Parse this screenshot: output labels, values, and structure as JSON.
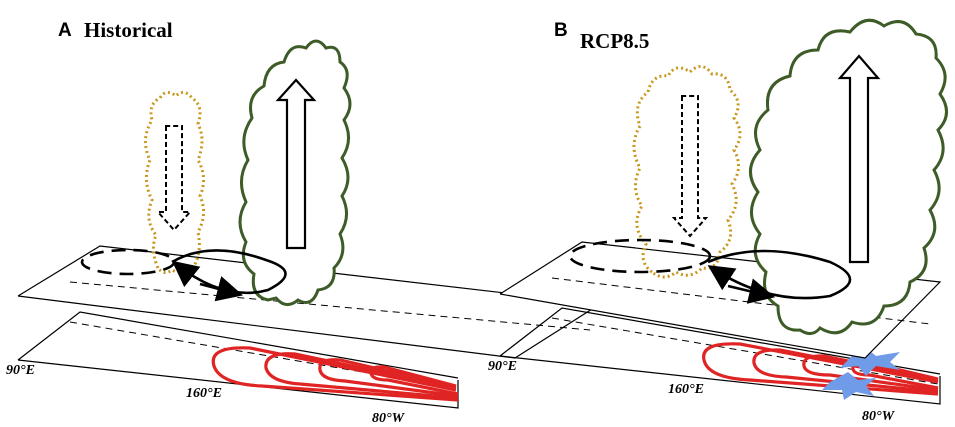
{
  "panels": [
    {
      "letter": "A",
      "title": "Historical",
      "axis_labels": [
        "90°E",
        "160°E",
        "80°W"
      ]
    },
    {
      "letter": "B",
      "title": "RCP8.5",
      "axis_labels": [
        "90°E",
        "160°E",
        "80°W"
      ]
    }
  ],
  "colors": {
    "descending_cloud": "#c8961e",
    "ascending_cloud": "#3d5c28",
    "warm_contours": "#e02424",
    "circulation": "#000000",
    "highlight": "#6f9be8"
  }
}
